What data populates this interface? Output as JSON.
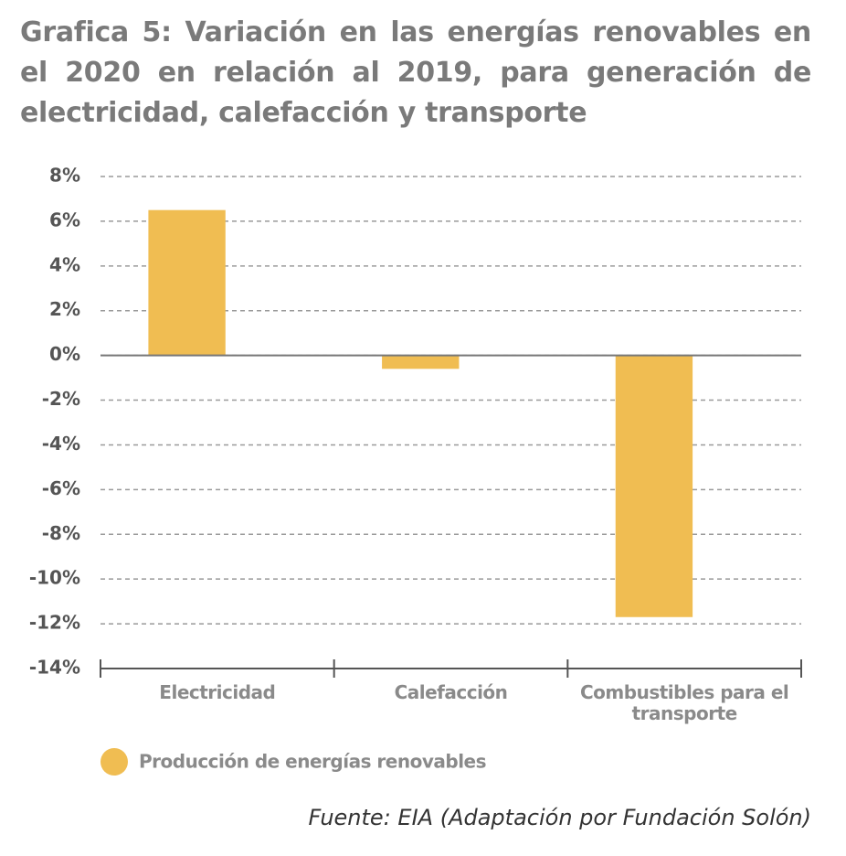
{
  "chart_data": {
    "type": "bar",
    "title": "Grafica 5: Variación en las energías renovables en el 2020 en relación al 2019, para generación de electricidad, calefacción y transporte",
    "categories": [
      "Electricidad",
      "Calefacción",
      "Combustibles para el transporte"
    ],
    "series": [
      {
        "name": "Producción de energías renovables",
        "color": "#f0bd52",
        "values": [
          6.5,
          -0.6,
          -11.7
        ]
      }
    ],
    "ylim": [
      -14,
      8
    ],
    "yticks": [
      {
        "value": -14,
        "label": "-14%"
      },
      {
        "value": -12,
        "label": "-12%"
      },
      {
        "value": -10,
        "label": "-10%"
      },
      {
        "value": -8,
        "label": "-8%"
      },
      {
        "value": -6,
        "label": "-6%"
      },
      {
        "value": -4,
        "label": "-4%"
      },
      {
        "value": -2,
        "label": "-2%"
      },
      {
        "value": 0,
        "label": "0%"
      },
      {
        "value": 2,
        "label": "2%"
      },
      {
        "value": 4,
        "label": "4%"
      },
      {
        "value": 6,
        "label": "6%"
      },
      {
        "value": 8,
        "label": "8%"
      }
    ],
    "grid": true,
    "source": "Fuente: EIA (Adaptación por Fundación Solón)"
  }
}
